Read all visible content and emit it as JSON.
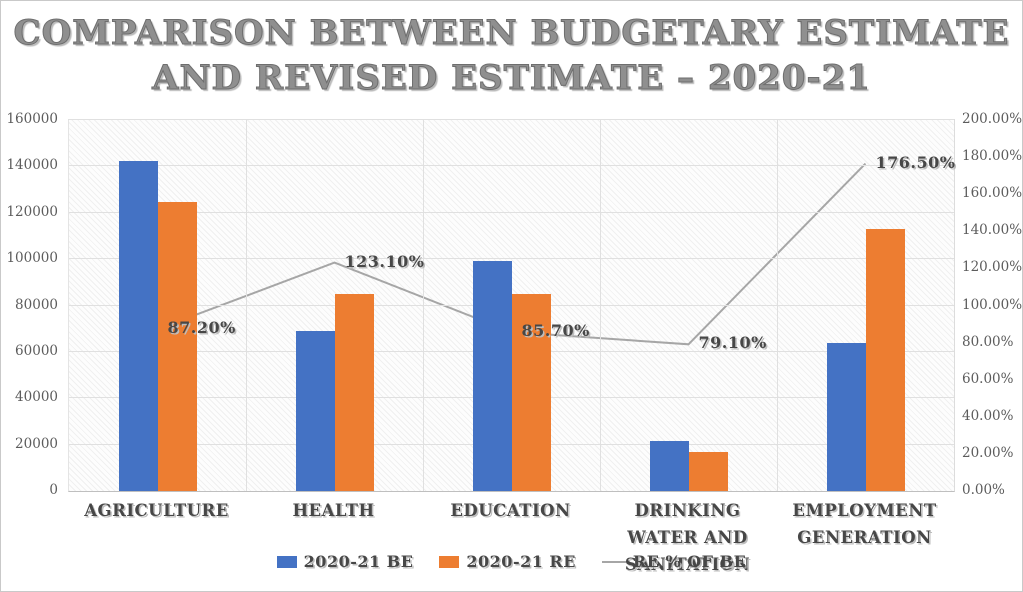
{
  "title": {
    "line1": "COMPARISON BETWEEN BUDGETARY ESTIMATE",
    "line2": "AND REVISED ESTIMATE – 2020-21"
  },
  "chart_data": {
    "type": "combo-bar-line",
    "categories": [
      "AGRICULTURE",
      "HEALTH",
      "EDUCATION",
      "DRINKING WATER AND SANITATION",
      "EMPLOYMENT GENERATION"
    ],
    "series": [
      {
        "name": "2020-21 BE",
        "type": "bar",
        "axis": "left",
        "color": "#4472C4",
        "values": [
          142500,
          69000,
          99300,
          21500,
          64000
        ]
      },
      {
        "name": "2020-21 RE",
        "type": "bar",
        "axis": "left",
        "color": "#ED7D31",
        "values": [
          124500,
          85000,
          85100,
          17000,
          113000
        ]
      },
      {
        "name": "RE % OF BE",
        "type": "line",
        "axis": "right",
        "color": "#A6A6A6",
        "values": [
          87.2,
          123.1,
          85.7,
          79.1,
          176.5
        ],
        "point_labels": [
          "87.20%",
          "123.10%",
          "85.70%",
          "79.10%",
          "176.50%"
        ]
      }
    ],
    "left_axis": {
      "min": 0,
      "max": 160000,
      "step": 20000,
      "tick_labels": [
        "0",
        "20000",
        "40000",
        "60000",
        "80000",
        "100000",
        "120000",
        "140000",
        "160000"
      ]
    },
    "right_axis": {
      "min": 0,
      "max": 200,
      "step": 20,
      "tick_labels": [
        "0.00%",
        "20.00%",
        "40.00%",
        "60.00%",
        "80.00%",
        "100.00%",
        "120.00%",
        "140.00%",
        "160.00%",
        "180.00%",
        "200.00%"
      ]
    },
    "grid": true,
    "legend_position": "bottom"
  },
  "colors": {
    "bar_be": "#4472C4",
    "bar_re": "#ED7D31",
    "line": "#A6A6A6",
    "gridline": "#E0E0E0",
    "title_text": "#8F8F8F",
    "label_text": "#474747",
    "tick_text": "#5C5C5C"
  }
}
